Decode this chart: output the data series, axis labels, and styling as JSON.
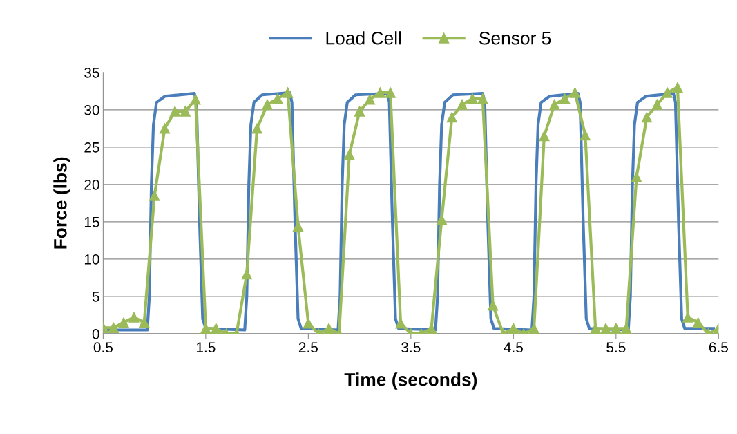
{
  "chart_data": {
    "type": "line",
    "xlabel": "Time (seconds)",
    "ylabel": "Force (lbs)",
    "xlim": [
      0.5,
      6.5
    ],
    "xticks": [
      0.5,
      1.5,
      2.5,
      3.5,
      4.5,
      5.5,
      6.5
    ],
    "ylim": [
      0,
      35
    ],
    "yticks": [
      0,
      5,
      10,
      15,
      20,
      25,
      30,
      35
    ],
    "grid": "y",
    "legend": "top",
    "series": [
      {
        "name": "Load Cell",
        "color": "#4a7ebb",
        "marker": "none",
        "x": [
          0.55,
          0.93,
          0.95,
          0.97,
          0.99,
          1.02,
          1.1,
          1.39,
          1.41,
          1.44,
          1.47,
          1.5,
          1.88,
          1.9,
          1.92,
          1.94,
          1.97,
          2.05,
          2.32,
          2.34,
          2.37,
          2.4,
          2.43,
          2.79,
          2.81,
          2.83,
          2.85,
          2.88,
          2.96,
          3.27,
          3.29,
          3.32,
          3.35,
          3.38,
          3.74,
          3.76,
          3.78,
          3.8,
          3.83,
          3.91,
          4.2,
          4.22,
          4.25,
          4.28,
          4.31,
          4.68,
          4.7,
          4.72,
          4.74,
          4.77,
          4.85,
          5.13,
          5.15,
          5.18,
          5.21,
          5.24,
          5.62,
          5.64,
          5.66,
          5.68,
          5.71,
          5.79,
          6.06,
          6.08,
          6.11,
          6.14,
          6.17,
          6.45
        ],
        "values": [
          0.5,
          0.5,
          5,
          20,
          28,
          31,
          31.8,
          32.2,
          31,
          15,
          2,
          0.7,
          0.5,
          5,
          20,
          28,
          31,
          32,
          32.3,
          31,
          15,
          2,
          0.7,
          0.5,
          5,
          20,
          28,
          31,
          32,
          32.2,
          31,
          15,
          2,
          0.7,
          0.5,
          5,
          20,
          28,
          31,
          32,
          32.2,
          31,
          15,
          2,
          0.7,
          0.5,
          5,
          20,
          28,
          31,
          31.8,
          32.2,
          31,
          15,
          2,
          0.7,
          0.5,
          5,
          20,
          28,
          31,
          31.8,
          32.2,
          31,
          15,
          2,
          0.7,
          0.7
        ]
      },
      {
        "name": "Sensor 5",
        "color": "#9bbb59",
        "marker": "triangle",
        "x": [
          0.5,
          0.6,
          0.7,
          0.8,
          0.9,
          1.0,
          1.1,
          1.2,
          1.3,
          1.4,
          1.5,
          1.6,
          1.7,
          1.8,
          1.9,
          2.0,
          2.1,
          2.2,
          2.3,
          2.4,
          2.5,
          2.6,
          2.7,
          2.8,
          2.9,
          3.0,
          3.1,
          3.2,
          3.3,
          3.4,
          3.5,
          3.6,
          3.7,
          3.8,
          3.9,
          4.0,
          4.1,
          4.2,
          4.3,
          4.4,
          4.5,
          4.6,
          4.7,
          4.8,
          4.9,
          5.0,
          5.1,
          5.2,
          5.3,
          5.4,
          5.5,
          5.6,
          5.7,
          5.8,
          5.9,
          6.0,
          6.1,
          6.2,
          6.3,
          6.4,
          6.5
        ],
        "values": [
          0.8,
          0.8,
          1.5,
          2.2,
          1.5,
          18.5,
          27.5,
          29.8,
          29.8,
          31.4,
          0.7,
          0.7,
          0,
          0,
          8,
          27.5,
          30.7,
          31.5,
          32.3,
          14.4,
          1.4,
          0,
          0.7,
          0,
          24,
          29.8,
          31.4,
          32.3,
          32.3,
          1.4,
          0,
          0,
          0.7,
          15.3,
          29,
          30.7,
          31.5,
          31.5,
          3.8,
          0,
          0.7,
          0,
          0.7,
          26.5,
          30.7,
          31.5,
          32.3,
          26.6,
          0.7,
          0.7,
          0.7,
          0.7,
          21,
          29,
          30.7,
          32.3,
          33,
          2.2,
          1.5,
          0,
          0.7
        ]
      }
    ]
  }
}
